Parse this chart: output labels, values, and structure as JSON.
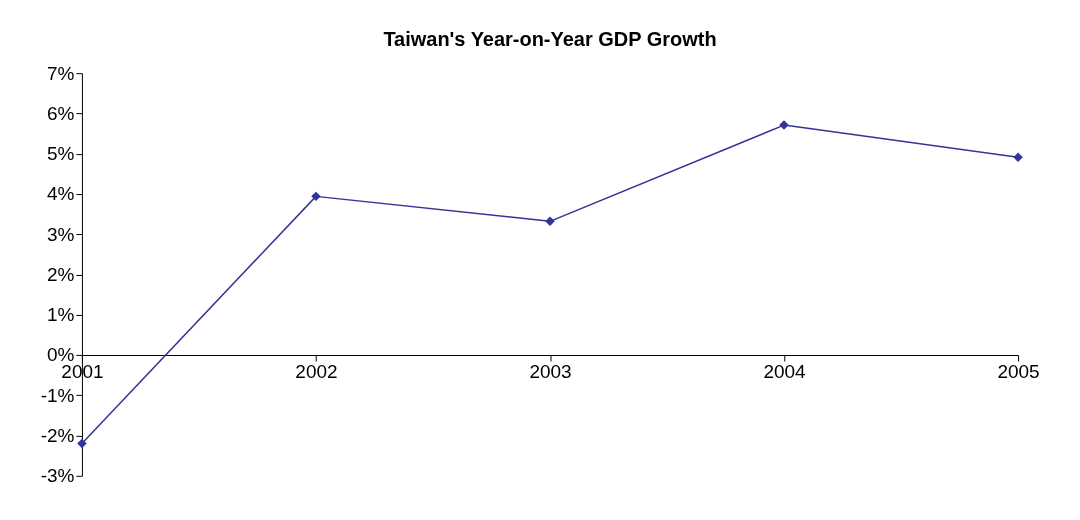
{
  "chart_data": {
    "type": "line",
    "title": "Taiwan's Year-on-Year GDP Growth",
    "categories": [
      "2001",
      "2002",
      "2003",
      "2004",
      "2005"
    ],
    "series": [
      {
        "color": "#333399",
        "values": [
          -2.2,
          3.94,
          3.32,
          5.71,
          4.91
        ]
      }
    ],
    "ylim": [
      -3,
      7
    ],
    "yticks": [
      {
        "value": -3,
        "label": "-3%"
      },
      {
        "value": -2,
        "label": "-2%"
      },
      {
        "value": -1,
        "label": "-1%"
      },
      {
        "value": 0,
        "label": "0%"
      },
      {
        "value": 1,
        "label": "1%"
      },
      {
        "value": 2,
        "label": "2%"
      },
      {
        "value": 3,
        "label": "3%"
      },
      {
        "value": 4,
        "label": "4%"
      },
      {
        "value": 5,
        "label": "5%"
      },
      {
        "value": 6,
        "label": "6%"
      },
      {
        "value": 7,
        "label": "7%"
      }
    ],
    "grid": false,
    "marker": "diamond",
    "line_style": "solid"
  }
}
